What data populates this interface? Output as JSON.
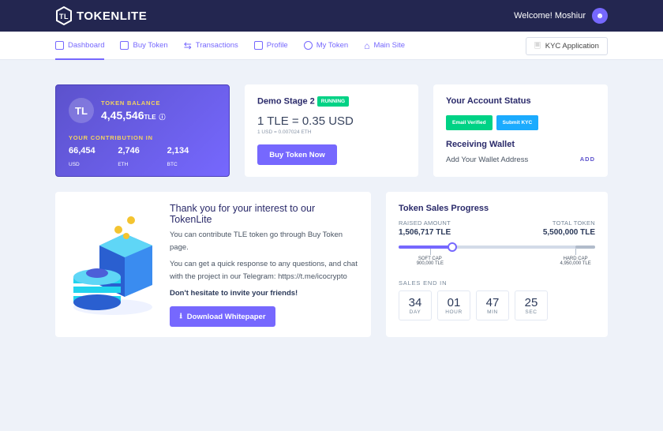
{
  "header": {
    "brand": "TOKENLITE",
    "welcome": "Welcome! Moshiur"
  },
  "nav": {
    "items": [
      {
        "label": "Dashboard",
        "icon": "grid-icon",
        "active": true
      },
      {
        "label": "Buy Token",
        "icon": "coins-icon"
      },
      {
        "label": "Transactions",
        "icon": "exchange-icon"
      },
      {
        "label": "Profile",
        "icon": "user-card-icon"
      },
      {
        "label": "My Token",
        "icon": "tokens-icon"
      },
      {
        "label": "Main Site",
        "icon": "home-icon"
      }
    ],
    "kyc": "KYC Application"
  },
  "balance": {
    "label": "TOKEN BALANCE",
    "value": "4,45,546",
    "unit": "TLE",
    "contribution_label": "YOUR CONTRIBUTION IN",
    "items": [
      {
        "value": "66,454",
        "unit": "USD"
      },
      {
        "value": "2,746",
        "unit": "ETH"
      },
      {
        "value": "2,134",
        "unit": "BTC"
      }
    ]
  },
  "stage": {
    "title": "Demo Stage 2",
    "badge": "RUNNING",
    "price": "1 TLE = 0.35 USD",
    "rate": "1 USD = 0.007024 ETH",
    "button": "Buy Token Now"
  },
  "account": {
    "title": "Your Account Status",
    "email": "Email Verified",
    "kyc": "Submit KYC",
    "wallet_title": "Receiving Wallet",
    "wallet_text": "Add Your Wallet Address",
    "add": "ADD",
    "colors": {
      "email": "#00d285",
      "kyc": "#1babfe"
    }
  },
  "info": {
    "title": "Thank you for your interest to our TokenLite",
    "p1": "You can contribute TLE token go through Buy Token page.",
    "p2": "You can get a quick response to any questions, and chat with the project in our Telegram: https://t.me/icocrypto",
    "p3": "Don't hesitate to invite your friends!",
    "button": "Download Whitepaper"
  },
  "sales": {
    "title": "Token Sales Progress",
    "raised_label": "RAISED AMOUNT",
    "raised": "1,506,717 TLE",
    "total_label": "TOTAL TOKEN",
    "total": "5,500,000 TLE",
    "progress_percent": 27.4,
    "soft_cap_label": "SOFT CAP",
    "soft_cap": "900,000 TLE",
    "hard_cap_label": "HARD CAP",
    "hard_cap": "4,950,000 TLE",
    "end_label": "SALES END IN",
    "countdown": [
      {
        "v": "34",
        "l": "DAY"
      },
      {
        "v": "01",
        "l": "HOUR"
      },
      {
        "v": "47",
        "l": "MIN"
      },
      {
        "v": "25",
        "l": "SEC"
      }
    ]
  },
  "colors": {
    "accent": "#7668fe",
    "header": "#232650"
  }
}
